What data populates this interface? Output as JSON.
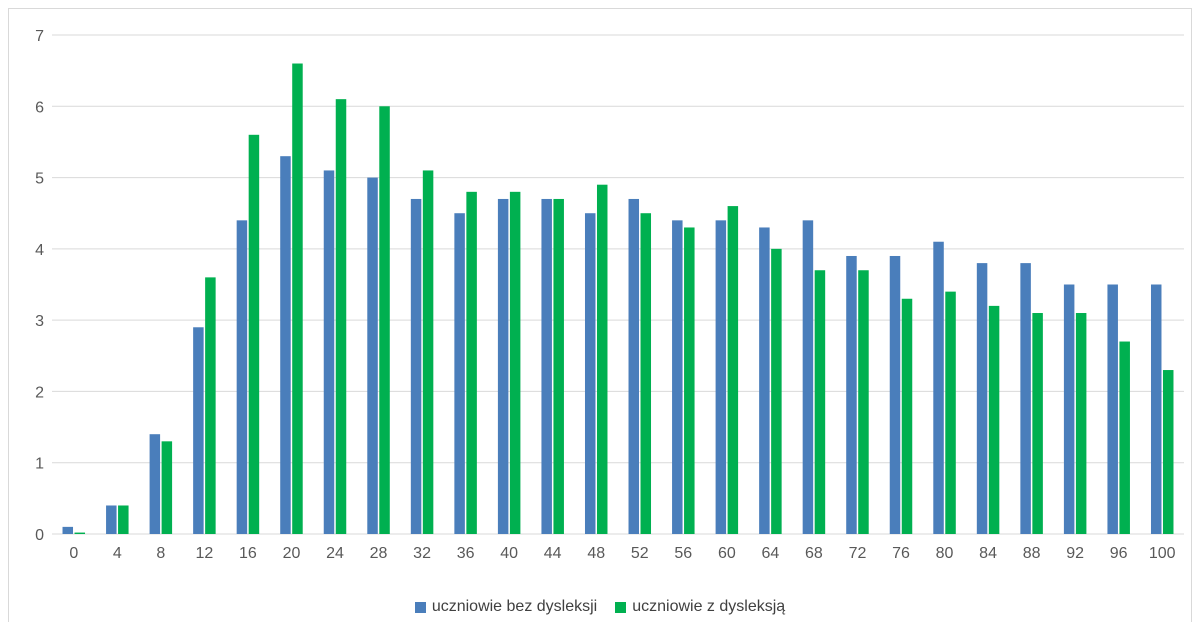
{
  "chart_data": {
    "type": "bar",
    "categories": [
      "0",
      "4",
      "8",
      "12",
      "16",
      "20",
      "24",
      "28",
      "32",
      "36",
      "40",
      "44",
      "48",
      "52",
      "56",
      "60",
      "64",
      "68",
      "72",
      "76",
      "80",
      "84",
      "88",
      "92",
      "96",
      "100"
    ],
    "ylim": [
      0,
      7
    ],
    "yticks": [
      "0",
      "1",
      "2",
      "3",
      "4",
      "5",
      "6",
      "7"
    ],
    "grid": true,
    "legend_position": "bottom",
    "series": [
      {
        "name": "uczniowie bez dysleksji",
        "color": "#4a7ebb",
        "values": [
          0.1,
          0.4,
          1.4,
          2.9,
          4.4,
          5.3,
          5.1,
          5.0,
          4.7,
          4.5,
          4.7,
          4.7,
          4.5,
          4.7,
          4.4,
          4.4,
          4.3,
          4.4,
          3.9,
          3.9,
          4.1,
          3.8,
          3.8,
          3.5,
          3.5,
          3.5
        ]
      },
      {
        "name": "uczniowie z dysleksją",
        "color": "#00b050",
        "values": [
          0.02,
          0.4,
          1.3,
          3.6,
          5.6,
          6.6,
          6.1,
          6.0,
          5.1,
          4.8,
          4.8,
          4.7,
          4.9,
          4.5,
          4.3,
          4.6,
          4.0,
          3.7,
          3.7,
          3.3,
          3.4,
          3.2,
          3.1,
          3.1,
          2.7,
          2.3
        ]
      }
    ]
  }
}
